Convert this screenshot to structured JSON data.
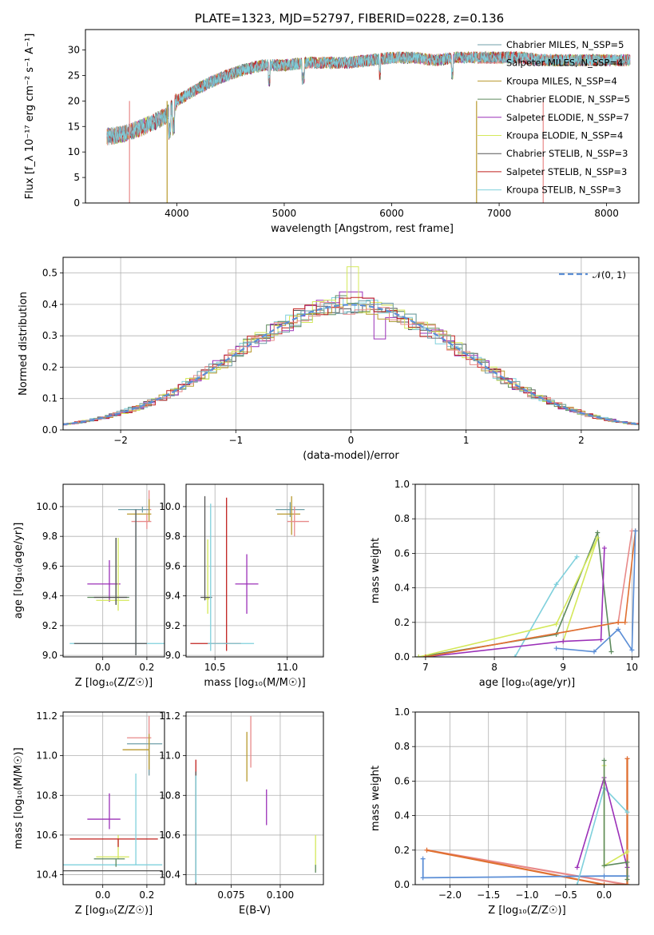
{
  "chart_data": [
    {
      "type": "line",
      "title": "PLATE=1323, MJD=52797, FIBERID=0228, z=0.136",
      "xlabel": "wavelength [Angstrom, rest frame]",
      "ylabel": "Flux [f_λ 10⁻¹⁷ erg cm⁻² s⁻¹ A⁻¹]",
      "xlim": [
        3150,
        8300
      ],
      "ylim": [
        0,
        34
      ],
      "xticks": [
        4000,
        5000,
        6000,
        7000,
        8000
      ],
      "yticks": [
        0,
        5,
        10,
        15,
        20,
        25,
        30
      ],
      "grid": false,
      "legend_position": "top-right",
      "spectrum_x": [
        3350,
        3500,
        3700,
        3900,
        4000,
        4200,
        4400,
        4600,
        4800,
        5000,
        5200,
        5400,
        5600,
        5800,
        6000,
        6200,
        6400,
        6600,
        6800,
        7000,
        7200,
        7400,
        7600,
        7800,
        8000,
        8200
      ],
      "spectrum_y": [
        13,
        13.5,
        15,
        17,
        20,
        22.5,
        24.5,
        26,
        27,
        27,
        27.5,
        27.5,
        27.5,
        28,
        28.5,
        28.5,
        28,
        28.5,
        28.5,
        28.5,
        28.5,
        28,
        28,
        28,
        28,
        28
      ],
      "series": [
        {
          "name": "Chabrier MILES, N_SSP=5",
          "color": "#6f9fa8"
        },
        {
          "name": "Salpeter MILES, N_SSP=4",
          "color": "#e88a8a"
        },
        {
          "name": "Kroupa MILES, N_SSP=4",
          "color": "#b89a2e"
        },
        {
          "name": "Chabrier ELODIE, N_SSP=5",
          "color": "#5d8a5d"
        },
        {
          "name": "Salpeter ELODIE, N_SSP=7",
          "color": "#9b30b8"
        },
        {
          "name": "Kroupa ELODIE, N_SSP=4",
          "color": "#d4e85a"
        },
        {
          "name": "Chabrier STELIB, N_SSP=3",
          "color": "#555555"
        },
        {
          "name": "Salpeter STELIB, N_SSP=3",
          "color": "#c0201e"
        },
        {
          "name": "Kroupa STELIB, N_SSP=3",
          "color": "#7fd0dc"
        }
      ]
    },
    {
      "type": "line",
      "xlabel": "(data-model)/error",
      "ylabel": "Normed distribution",
      "xlim": [
        -2.5,
        2.5
      ],
      "ylim": [
        0,
        0.55
      ],
      "xticks": [
        -2,
        -1,
        0,
        1,
        2
      ],
      "yticks": [
        0.0,
        0.1,
        0.2,
        0.3,
        0.4,
        0.5
      ],
      "grid": true,
      "legend_position": "top-right",
      "legend": "𝒩(0, 1)",
      "gaussian_color": "#5b8ed6"
    },
    {
      "type": "scatter",
      "xlabel": "Z [log₁₀(Z/Z☉)]",
      "ylabel": "age  [log₁₀(age/yr)]",
      "xlim": [
        -0.18,
        0.28
      ],
      "ylim": [
        8.99,
        10.15
      ],
      "xticks": [
        0.0,
        0.2
      ],
      "yticks": [
        9.0,
        9.2,
        9.4,
        9.6,
        9.8,
        10.0
      ],
      "grid": true
    },
    {
      "type": "scatter",
      "xlabel": "mass [log₁₀(M/M☉)]",
      "xlim": [
        10.3,
        11.25
      ],
      "ylim": [
        8.99,
        10.15
      ],
      "xticks": [
        10.5,
        11.0
      ],
      "yticks": [
        9.0,
        9.2,
        9.4,
        9.6,
        9.8,
        10.0
      ],
      "grid": true
    },
    {
      "type": "line",
      "xlabel": "age  [log₁₀(age/yr)]",
      "ylabel": "mass weight",
      "xlim": [
        6.85,
        10.1
      ],
      "ylim": [
        0,
        1.0
      ],
      "xticks": [
        7,
        8,
        9,
        10
      ],
      "yticks": [
        0.0,
        0.2,
        0.4,
        0.6,
        0.8,
        1.0
      ],
      "grid": true
    },
    {
      "type": "scatter",
      "xlabel": "Z [log₁₀(Z/Z☉)]",
      "ylabel": "mass [log₁₀(M/M☉)]",
      "xlim": [
        -0.18,
        0.28
      ],
      "ylim": [
        10.35,
        11.22
      ],
      "xticks": [
        0.0,
        0.2
      ],
      "yticks": [
        10.4,
        10.6,
        10.8,
        11.0,
        11.2
      ],
      "grid": true
    },
    {
      "type": "scatter",
      "xlabel": "E(B-V)",
      "xlim": [
        0.052,
        0.122
      ],
      "ylim": [
        10.35,
        11.22
      ],
      "xticks": [
        0.075,
        0.1
      ],
      "yticks": [
        10.4,
        10.6,
        10.8,
        11.0,
        11.2
      ],
      "grid": true
    },
    {
      "type": "line",
      "xlabel": "Z [log₁₀(Z/Z☉)]",
      "ylabel": "mass weight",
      "xlim": [
        -2.45,
        0.45
      ],
      "ylim": [
        0,
        1.0
      ],
      "xticks": [
        -2.0,
        -1.5,
        -1.0,
        -0.5,
        0.0
      ],
      "yticks": [
        0.0,
        0.2,
        0.4,
        0.6,
        0.8,
        1.0
      ],
      "grid": true
    }
  ]
}
